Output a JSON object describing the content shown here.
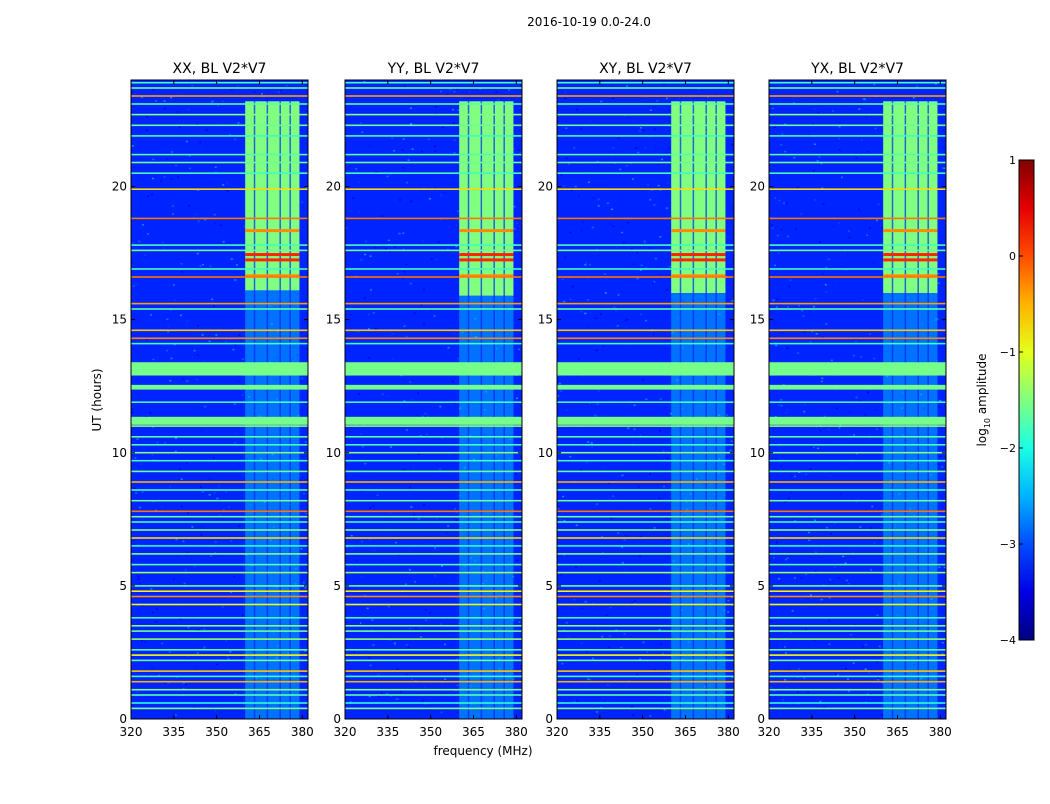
{
  "suptitle": "2016-10-19 0.0-24.0",
  "chart_data": {
    "type": "heatmap",
    "xlabel": "frequency (MHz)",
    "ylabel": "UT (hours)",
    "xlim": [
      320,
      382
    ],
    "ylim": [
      0,
      24
    ],
    "xticks": [
      320,
      335,
      350,
      365,
      380
    ],
    "xtick_labels": [
      "320",
      "335",
      "350",
      "365",
      "380"
    ],
    "yticks": [
      0,
      5,
      10,
      15,
      20
    ],
    "ytick_labels": [
      "0",
      "5",
      "10",
      "15",
      "20"
    ],
    "panels": [
      {
        "title": "XX, BL V2*V7",
        "strong_band_start_hour": 16.1
      },
      {
        "title": "YY, BL V2*V7",
        "strong_band_start_hour": 15.9
      },
      {
        "title": "XY, BL V2*V7",
        "strong_band_start_hour": 16.0
      },
      {
        "title": "YX, BL V2*V7",
        "strong_band_start_hour": 16.0
      }
    ],
    "signal_band_mhz": [
      360,
      379
    ],
    "background_level": -3.2,
    "strong_band_level": -1.5,
    "weak_band_level": -2.5,
    "rfi_rows": [
      {
        "hour": 0.4,
        "level": -1.5
      },
      {
        "hour": 0.6,
        "level": -1.9
      },
      {
        "hour": 0.9,
        "level": -1.7
      },
      {
        "hour": 1.1,
        "level": -1.5
      },
      {
        "hour": 1.4,
        "level": -0.5
      },
      {
        "hour": 1.6,
        "level": -1.8
      },
      {
        "hour": 1.8,
        "level": -0.6
      },
      {
        "hour": 2.2,
        "level": -1.6
      },
      {
        "hour": 2.4,
        "level": -0.9
      },
      {
        "hour": 2.6,
        "level": -1.7
      },
      {
        "hour": 3.0,
        "level": -1.4
      },
      {
        "hour": 3.3,
        "level": -1.6
      },
      {
        "hour": 3.5,
        "level": -1.5
      },
      {
        "hour": 3.8,
        "level": -1.8
      },
      {
        "hour": 4.3,
        "level": -1.0
      },
      {
        "hour": 4.6,
        "level": -0.3
      },
      {
        "hour": 4.8,
        "level": -0.8
      },
      {
        "hour": 5.0,
        "level": -1.6
      },
      {
        "hour": 5.5,
        "level": -1.4
      },
      {
        "hour": 5.8,
        "level": -1.7
      },
      {
        "hour": 6.2,
        "level": -1.5
      },
      {
        "hour": 6.5,
        "level": -1.9
      },
      {
        "hour": 6.8,
        "level": -0.7
      },
      {
        "hour": 7.1,
        "level": -1.5
      },
      {
        "hour": 7.4,
        "level": -1.8
      },
      {
        "hour": 7.6,
        "level": -1.6
      },
      {
        "hour": 7.8,
        "level": -0.2
      },
      {
        "hour": 8.2,
        "level": -1.6
      },
      {
        "hour": 8.6,
        "level": -1.8
      },
      {
        "hour": 8.9,
        "level": -0.5
      },
      {
        "hour": 9.3,
        "level": -1.6
      },
      {
        "hour": 9.7,
        "level": -1.8
      },
      {
        "hour": 10.0,
        "level": -1.5
      },
      {
        "hour": 10.3,
        "level": -1.8
      },
      {
        "hour": 10.6,
        "level": -1.7
      },
      {
        "hour": 11.0,
        "level": -1.4
      },
      {
        "hour": 11.1,
        "level": -1.3
      },
      {
        "hour": 11.2,
        "level": -1.4
      },
      {
        "hour": 11.3,
        "level": -1.5
      },
      {
        "hour": 11.9,
        "level": -1.8
      },
      {
        "hour": 12.4,
        "level": -1.5
      },
      {
        "hour": 12.5,
        "level": -1.4
      },
      {
        "hour": 13.0,
        "level": -1.5
      },
      {
        "hour": 13.1,
        "level": -1.6
      },
      {
        "hour": 13.3,
        "level": -1.5
      },
      {
        "hour": 14.1,
        "level": -1.8
      },
      {
        "hour": 14.3,
        "level": -0.3
      },
      {
        "hour": 14.6,
        "level": -0.6
      },
      {
        "hour": 15.4,
        "level": -1.7
      },
      {
        "hour": 15.6,
        "level": -0.4
      },
      {
        "hour": 16.6,
        "level": -0.2
      },
      {
        "hour": 16.9,
        "level": -1.8
      },
      {
        "hour": 17.6,
        "level": -1.6
      },
      {
        "hour": 17.8,
        "level": -1.8
      },
      {
        "hour": 18.8,
        "level": -0.2
      },
      {
        "hour": 19.9,
        "level": -0.7
      },
      {
        "hour": 20.5,
        "level": -1.8
      },
      {
        "hour": 20.9,
        "level": -1.6
      },
      {
        "hour": 21.2,
        "level": -1.7
      },
      {
        "hour": 21.9,
        "level": -1.8
      },
      {
        "hour": 22.3,
        "level": -1.6
      },
      {
        "hour": 22.7,
        "level": -1.5
      },
      {
        "hour": 23.1,
        "level": -1.7
      },
      {
        "hour": 23.4,
        "level": -0.4
      },
      {
        "hour": 23.7,
        "level": -1.6
      },
      {
        "hour": 23.9,
        "level": -1.8
      }
    ],
    "colorbar": {
      "label_prefix": "log",
      "label_subscript": "10",
      "label_suffix": " amplitude",
      "range": [
        -4,
        1
      ],
      "ticks": [
        1,
        0,
        -1,
        -2,
        -3,
        -4
      ],
      "tick_labels": [
        "1",
        "0",
        "−1",
        "−2",
        "−3",
        "−4"
      ]
    }
  }
}
